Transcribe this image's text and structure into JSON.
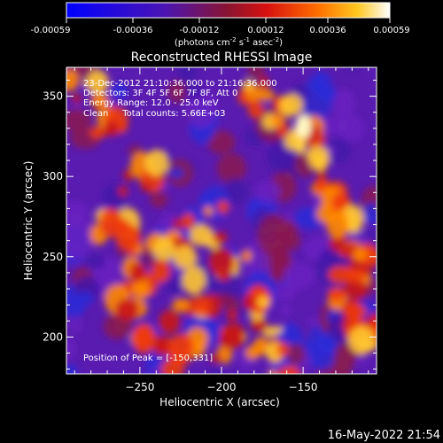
{
  "colorbar": {
    "ticks": [
      "-0.00059",
      "-0.00036",
      "-0.00012",
      "0.00012",
      "0.00036",
      "0.00059"
    ],
    "unit_base": "(photons cm",
    "unit_sup1": "-2",
    "unit_mid": " s",
    "unit_sup2": "-1",
    "unit_mid2": " asec",
    "unit_sup3": "-2",
    "unit_end": ")"
  },
  "chart_data": {
    "type": "heatmap",
    "title": "Reconstructed RHESSI Image",
    "xlabel": "Heliocentric X (arcsec)",
    "ylabel": "Heliocentric Y (arcsec)",
    "x_ticks": [
      -250,
      -200,
      -150
    ],
    "y_ticks": [
      200,
      250,
      300,
      350
    ],
    "xlim": [
      -295,
      -105
    ],
    "ylim": [
      177,
      368
    ],
    "color_range": [
      -0.00059,
      0.00059
    ],
    "colormap": "blue-purple-red-yellow-white",
    "peak": [
      -150,
      331
    ],
    "annotations": {
      "line1": "23-Dec-2012 21:10:36.000 to 21:16:36.000",
      "line2": "Detectors: 3F 4F 5F 6F 7F 8F, Att 0",
      "line3": "Energy Range: 12.0 - 25.0 keV",
      "line4": "Clean     Total counts: 5.66E+03",
      "peak_label": "Position of Peak = [-150,331]"
    }
  },
  "timestamp": "16-May-2022 21:54"
}
